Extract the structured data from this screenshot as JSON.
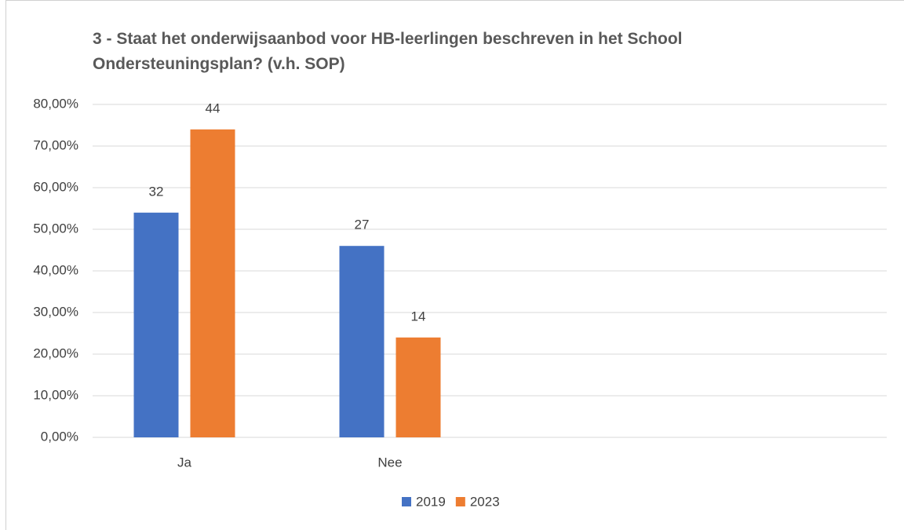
{
  "chart_data": {
    "type": "bar",
    "title": "3 - Staat het onderwijsaanbod voor HB-leerlingen beschreven in het School Ondersteuningsplan? (v.h. SOP)",
    "categories": [
      "Ja",
      "Nee"
    ],
    "series": [
      {
        "name": "2019",
        "color": "#4472c4",
        "values": [
          54,
          46
        ],
        "data_labels": [
          "32",
          "27"
        ]
      },
      {
        "name": "2023",
        "color": "#ed7d31",
        "values": [
          74,
          24
        ],
        "data_labels": [
          "44",
          "14"
        ]
      }
    ],
    "ylim": [
      0,
      80
    ],
    "yticks": [
      {
        "value": 0,
        "label": "0,00%"
      },
      {
        "value": 10,
        "label": "10,00%"
      },
      {
        "value": 20,
        "label": "20,00%"
      },
      {
        "value": 30,
        "label": "30,00%"
      },
      {
        "value": 40,
        "label": "40,00%"
      },
      {
        "value": 50,
        "label": "50,00%"
      },
      {
        "value": 60,
        "label": "60,00%"
      },
      {
        "value": 70,
        "label": "70,00%"
      },
      {
        "value": 80,
        "label": "80,00%"
      }
    ],
    "grid": true,
    "legend": "bottom"
  }
}
